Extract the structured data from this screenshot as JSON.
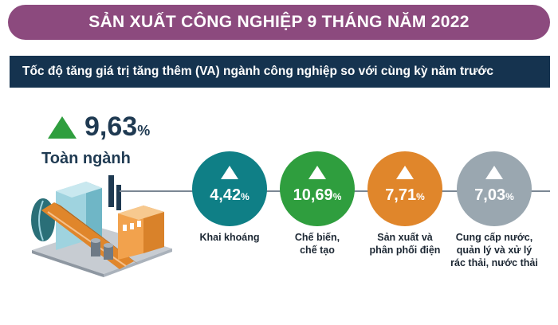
{
  "header": {
    "title": "SẢN XUẤT CÔNG NGHIỆP 9 THÁNG NĂM 2022"
  },
  "subheader": {
    "text": "Tốc độ tăng giá trị tăng thêm (VA) ngành công nghiệp so với cùng kỳ năm trước"
  },
  "total": {
    "value": "9,63",
    "unit": "%",
    "label": "Toàn ngành"
  },
  "sectors": [
    {
      "value": "4,42",
      "unit": "%",
      "label": "Khai khoáng",
      "color": "#0f7f86"
    },
    {
      "value": "10,69",
      "unit": "%",
      "label": "Chế biến,\nchế tạo",
      "color": "#2f9e3e"
    },
    {
      "value": "7,71",
      "unit": "%",
      "label": "Sản xuất và\nphân phối điện",
      "color": "#e0862b"
    },
    {
      "value": "7,03",
      "unit": "%",
      "label": "Cung cấp nước,\nquản lý và xử lý\nrác thải, nước thải",
      "color": "#9aa7b0"
    }
  ],
  "colors": {
    "title_bg": "#8c4a7e",
    "subtitle_bg": "#15334f",
    "up_arrow": "#2f9e3e",
    "text_dark": "#1f3a52"
  },
  "icons": {
    "trend": "up-triangle-icon",
    "illustration": "factory-icon"
  }
}
